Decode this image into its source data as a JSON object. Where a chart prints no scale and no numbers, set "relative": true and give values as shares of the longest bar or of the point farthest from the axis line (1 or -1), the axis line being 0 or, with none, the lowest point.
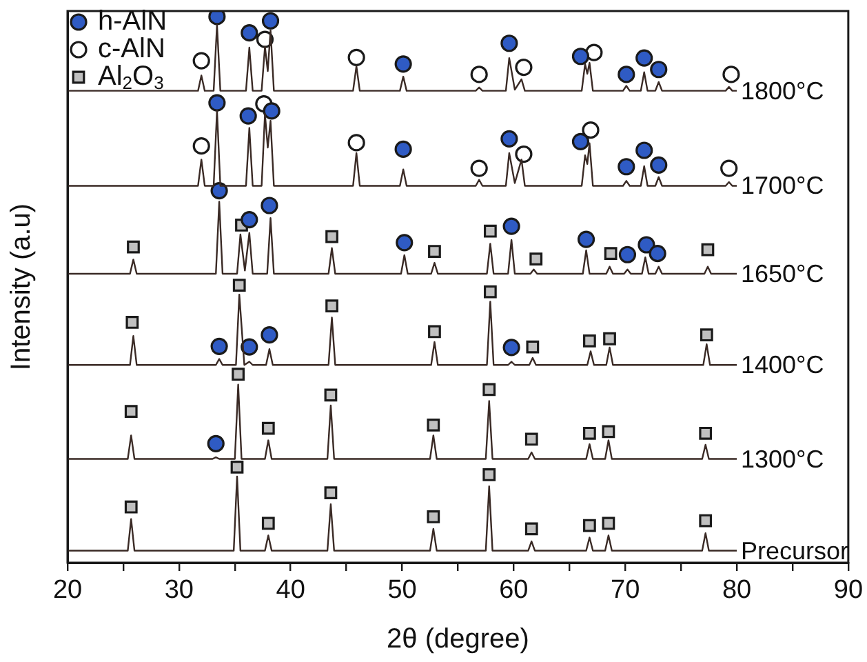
{
  "chart_data": {
    "type": "line",
    "relative": true,
    "xlabel": "2θ (degree)",
    "ylabel": "Intensity (a.u)",
    "xlim": [
      20,
      90
    ],
    "xticks": [
      20,
      {
        "value": 25,
        "label": null
      },
      30,
      {
        "value": 35,
        "label": null
      },
      40,
      {
        "value": 45,
        "label": null
      },
      50,
      {
        "value": 55,
        "label": null
      },
      60,
      {
        "value": 65,
        "label": null
      },
      70,
      {
        "value": 75,
        "label": null
      },
      80,
      {
        "value": 85,
        "label": null
      },
      90
    ],
    "grid": false,
    "legend": "top left",
    "line_style": "solid",
    "series": [
      {
        "name": "1800°C",
        "color": "#3a2a25",
        "x": [
          20,
          31.7,
          32.0,
          32.3,
          33.1,
          33.4,
          33.7,
          36.0,
          36.3,
          36.6,
          37.4,
          37.7,
          37.95,
          38.2,
          38.5,
          45.6,
          45.9,
          46.2,
          49.8,
          50.1,
          50.4,
          56.6,
          56.9,
          57.2,
          59.3,
          59.6,
          60.1,
          60.7,
          61.0,
          66.1,
          66.4,
          66.6,
          66.8,
          67.1,
          69.8,
          70.1,
          70.4,
          71.4,
          71.7,
          72.0,
          72.7,
          73.0,
          73.3,
          79.0,
          79.3,
          79.6,
          80
        ],
        "values": [
          0.864,
          0.864,
          0.892,
          0.864,
          0.864,
          0.985,
          0.864,
          0.864,
          0.943,
          0.864,
          0.864,
          0.945,
          0.9,
          0.975,
          0.864,
          0.864,
          0.909,
          0.864,
          0.864,
          0.89,
          0.864,
          0.864,
          0.87,
          0.864,
          0.864,
          0.924,
          0.866,
          0.885,
          0.864,
          0.864,
          0.913,
          0.895,
          0.915,
          0.864,
          0.864,
          0.873,
          0.864,
          0.864,
          0.898,
          0.864,
          0.864,
          0.88,
          0.864,
          0.864,
          0.871,
          0.864,
          0.864
        ]
      },
      {
        "name": "1700°C",
        "color": "#3a2a25",
        "x": [
          20,
          31.7,
          32.0,
          32.3,
          33.1,
          33.4,
          33.7,
          36.0,
          36.3,
          36.6,
          37.4,
          37.7,
          37.95,
          38.2,
          38.5,
          45.6,
          45.9,
          46.2,
          49.8,
          50.1,
          50.4,
          56.6,
          56.9,
          57.2,
          59.3,
          59.6,
          60.1,
          60.7,
          61.0,
          66.1,
          66.4,
          66.6,
          66.8,
          67.1,
          69.8,
          70.1,
          70.4,
          71.4,
          71.7,
          72.0,
          72.7,
          73.0,
          73.3,
          79.0,
          79.3,
          79.6,
          80
        ],
        "values": [
          0.69,
          0.69,
          0.738,
          0.69,
          0.69,
          0.828,
          0.69,
          0.69,
          0.796,
          0.69,
          0.69,
          0.822,
          0.76,
          0.809,
          0.69,
          0.69,
          0.75,
          0.69,
          0.69,
          0.72,
          0.69,
          0.69,
          0.701,
          0.69,
          0.69,
          0.75,
          0.695,
          0.738,
          0.69,
          0.69,
          0.746,
          0.73,
          0.768,
          0.69,
          0.69,
          0.699,
          0.69,
          0.69,
          0.726,
          0.69,
          0.69,
          0.706,
          0.69,
          0.69,
          0.697,
          0.69,
          0.69
        ]
      },
      {
        "name": "1650°C",
        "color": "#3a2a25",
        "x": [
          20,
          25.6,
          25.9,
          26.2,
          33.3,
          33.6,
          33.9,
          35.2,
          35.5,
          35.9,
          36.3,
          36.6,
          37.9,
          38.2,
          38.5,
          43.4,
          43.7,
          44.0,
          49.9,
          50.2,
          50.5,
          52.6,
          52.9,
          53.2,
          57.6,
          57.9,
          58.2,
          59.5,
          59.8,
          60.1,
          61.5,
          61.8,
          62.1,
          66.2,
          66.5,
          66.8,
          68.3,
          68.6,
          68.9,
          69.9,
          70.2,
          70.5,
          71.5,
          71.8,
          72.1,
          72.7,
          73.0,
          73.3,
          77.1,
          77.4,
          77.7,
          80
        ],
        "values": [
          0.529,
          0.529,
          0.555,
          0.529,
          0.529,
          0.661,
          0.529,
          0.529,
          0.601,
          0.535,
          0.604,
          0.529,
          0.529,
          0.631,
          0.529,
          0.529,
          0.576,
          0.529,
          0.529,
          0.563,
          0.529,
          0.529,
          0.549,
          0.529,
          0.529,
          0.584,
          0.529,
          0.529,
          0.591,
          0.529,
          0.529,
          0.537,
          0.529,
          0.529,
          0.572,
          0.529,
          0.529,
          0.542,
          0.529,
          0.529,
          0.537,
          0.529,
          0.529,
          0.559,
          0.529,
          0.529,
          0.542,
          0.529,
          0.529,
          0.542,
          0.529,
          0.529
        ]
      },
      {
        "name": "1400°C",
        "color": "#3a2a25",
        "x": [
          20,
          25.6,
          25.9,
          26.2,
          33.3,
          33.6,
          33.9,
          35.1,
          35.4,
          35.85,
          36.3,
          36.6,
          37.8,
          38.1,
          38.4,
          43.4,
          43.7,
          44.0,
          52.6,
          52.9,
          53.2,
          57.6,
          57.9,
          58.2,
          59.5,
          59.8,
          60.1,
          61.4,
          61.7,
          62.0,
          66.6,
          66.9,
          67.2,
          68.3,
          68.6,
          68.9,
          77.0,
          77.3,
          77.6,
          80
        ],
        "values": [
          0.362,
          0.362,
          0.415,
          0.362,
          0.362,
          0.373,
          0.362,
          0.362,
          0.491,
          0.362,
          0.368,
          0.362,
          0.362,
          0.391,
          0.362,
          0.362,
          0.449,
          0.362,
          0.362,
          0.404,
          0.362,
          0.362,
          0.478,
          0.362,
          0.362,
          0.368,
          0.362,
          0.362,
          0.375,
          0.362,
          0.362,
          0.387,
          0.362,
          0.362,
          0.394,
          0.362,
          0.362,
          0.4,
          0.362,
          0.362
        ]
      },
      {
        "name": "1300°C",
        "color": "#3a2a25",
        "x": [
          20,
          25.4,
          25.7,
          26.0,
          33.0,
          33.3,
          33.6,
          35.0,
          35.3,
          35.6,
          37.7,
          38.0,
          38.3,
          43.3,
          43.6,
          43.9,
          52.5,
          52.8,
          53.1,
          57.5,
          57.8,
          58.1,
          61.3,
          61.6,
          61.9,
          66.5,
          66.8,
          67.1,
          68.2,
          68.5,
          68.8,
          76.9,
          77.2,
          77.5,
          80
        ],
        "values": [
          0.19,
          0.19,
          0.233,
          0.19,
          0.19,
          0.193,
          0.19,
          0.19,
          0.326,
          0.19,
          0.19,
          0.224,
          0.19,
          0.19,
          0.288,
          0.19,
          0.19,
          0.233,
          0.19,
          0.19,
          0.296,
          0.19,
          0.19,
          0.202,
          0.19,
          0.19,
          0.217,
          0.19,
          0.19,
          0.224,
          0.19,
          0.19,
          0.216,
          0.19,
          0.19
        ]
      },
      {
        "name": "Precursor",
        "color": "#3a2a25",
        "x": [
          20,
          25.4,
          25.7,
          26.0,
          34.9,
          35.2,
          35.5,
          37.7,
          38.0,
          38.3,
          43.3,
          43.6,
          43.9,
          52.5,
          52.8,
          53.1,
          57.5,
          57.8,
          58.1,
          61.3,
          61.6,
          61.9,
          66.5,
          66.8,
          67.1,
          68.2,
          68.5,
          68.8,
          76.9,
          77.2,
          77.5,
          80
        ],
        "values": [
          0.022,
          0.022,
          0.08,
          0.022,
          0.022,
          0.158,
          0.022,
          0.022,
          0.05,
          0.022,
          0.022,
          0.107,
          0.022,
          0.022,
          0.062,
          0.022,
          0.022,
          0.14,
          0.022,
          0.022,
          0.039,
          0.022,
          0.022,
          0.046,
          0.022,
          0.022,
          0.05,
          0.022,
          0.022,
          0.054,
          0.022,
          0.022
        ]
      },
      {
        "name": "h-AlN",
        "type": "scatter",
        "marker": "circle",
        "color": "#2f5bc4",
        "x": [
          33.4,
          36.3,
          38.2,
          50.1,
          59.6,
          66.0,
          70.1,
          71.7,
          73.0,
          33.4,
          36.2,
          38.3,
          50.1,
          59.6,
          66.0,
          70.1,
          71.7,
          73.0,
          33.6,
          36.3,
          38.1,
          50.2,
          59.8,
          66.5,
          70.2,
          71.9,
          72.9,
          33.6,
          36.3,
          38.1,
          59.8,
          33.3
        ],
        "values": [
          1.0,
          0.97,
          0.992,
          0.913,
          0.951,
          0.927,
          0.894,
          0.924,
          0.903,
          0.842,
          0.818,
          0.827,
          0.757,
          0.776,
          0.771,
          0.725,
          0.755,
          0.728,
          0.681,
          0.628,
          0.654,
          0.586,
          0.616,
          0.592,
          0.564,
          0.582,
          0.566,
          0.396,
          0.395,
          0.417,
          0.394,
          0.218
        ]
      },
      {
        "name": "c-AlN",
        "type": "scatter",
        "marker": "circle",
        "color": "#ffffff",
        "x": [
          32.0,
          37.7,
          45.9,
          56.9,
          60.9,
          67.2,
          79.5,
          32.0,
          37.6,
          45.9,
          56.9,
          60.9,
          66.9,
          79.3
        ],
        "values": [
          0.919,
          0.958,
          0.925,
          0.894,
          0.907,
          0.934,
          0.894,
          0.763,
          0.84,
          0.769,
          0.722,
          0.748,
          0.792,
          0.722
        ]
      },
      {
        "name": "Al$_{2}$O$_{3}$",
        "type": "scatter",
        "marker": "square",
        "color": "#c0c0c0",
        "x": [
          25.9,
          35.6,
          43.7,
          52.9,
          57.9,
          62.0,
          68.7,
          77.4,
          25.8,
          35.4,
          43.7,
          52.9,
          57.9,
          61.7,
          66.8,
          68.6,
          77.3,
          25.7,
          35.3,
          38.0,
          43.6,
          52.8,
          57.8,
          61.6,
          66.8,
          68.5,
          77.2,
          25.7,
          35.2,
          38.0,
          43.6,
          52.8,
          57.8,
          61.6,
          66.8,
          68.5,
          77.2
        ],
        "values": [
          0.578,
          0.618,
          0.597,
          0.57,
          0.607,
          0.556,
          0.566,
          0.573,
          0.44,
          0.508,
          0.47,
          0.423,
          0.496,
          0.395,
          0.406,
          0.41,
          0.417,
          0.277,
          0.345,
          0.246,
          0.307,
          0.252,
          0.317,
          0.226,
          0.237,
          0.24,
          0.237,
          0.102,
          0.175,
          0.072,
          0.128,
          0.084,
          0.161,
          0.062,
          0.068,
          0.072,
          0.077
        ]
      }
    ]
  }
}
